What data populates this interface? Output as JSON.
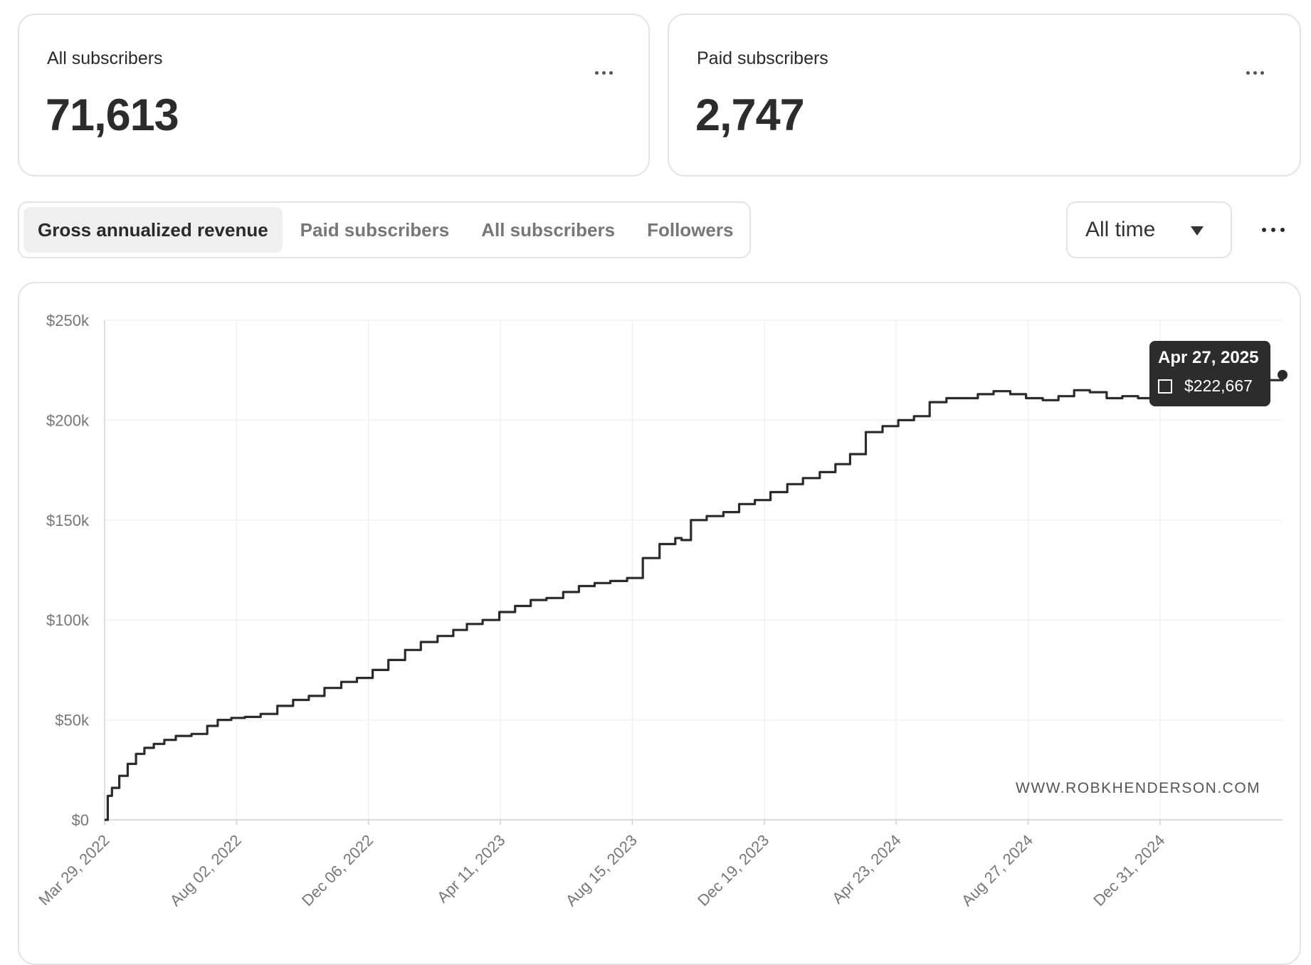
{
  "cards": [
    {
      "label": "All subscribers",
      "value": "71,613"
    },
    {
      "label": "Paid subscribers",
      "value": "2,747"
    }
  ],
  "tabs": [
    {
      "label": "Gross annualized revenue",
      "active": true
    },
    {
      "label": "Paid subscribers",
      "active": false
    },
    {
      "label": "All subscribers",
      "active": false
    },
    {
      "label": "Followers",
      "active": false
    }
  ],
  "range_select": {
    "value": "All time"
  },
  "icons": {
    "more": "more-horizontal-icon",
    "caret": "caret-down-icon"
  },
  "colors": {
    "line": "#2b2b2b",
    "tooltip_bg": "#2c2c2c",
    "active_tab_bg": "#efefef",
    "border": "#e4e4e4"
  },
  "watermark": "WWW.ROBKHENDERSON.COM",
  "tooltip": {
    "date": "Apr 27, 2025",
    "value": "$222,667"
  },
  "chart_data": {
    "type": "line",
    "ylim": [
      0,
      250000
    ],
    "y_ticks": [
      0,
      50000,
      100000,
      150000,
      200000,
      250000
    ],
    "y_tick_labels": [
      "$0",
      "$50k",
      "$100k",
      "$150k",
      "$200k",
      "$250k"
    ],
    "x_tick_labels": [
      "Mar 29, 2022",
      "Aug 02, 2022",
      "Dec 06, 2022",
      "Apr 11, 2023",
      "Aug 15, 2023",
      "Dec 19, 2023",
      "Apr 23, 2024",
      "Aug 27, 2024",
      "Dec 31, 2024"
    ],
    "x_range": [
      "2022-03-29",
      "2025-04-27"
    ],
    "grid": true,
    "series": [
      {
        "x": [
          "2022-03-29",
          "2022-04-01",
          "2022-04-05",
          "2022-04-12",
          "2022-04-20",
          "2022-04-28",
          "2022-05-06",
          "2022-05-15",
          "2022-05-25",
          "2022-06-05",
          "2022-06-20",
          "2022-07-05",
          "2022-07-15",
          "2022-07-28",
          "2022-08-10",
          "2022-08-25",
          "2022-09-10",
          "2022-09-25",
          "2022-10-10",
          "2022-10-25",
          "2022-11-10",
          "2022-11-25",
          "2022-12-10",
          "2022-12-25",
          "2023-01-10",
          "2023-01-25",
          "2023-02-10",
          "2023-02-25",
          "2023-03-10",
          "2023-03-25",
          "2023-04-10",
          "2023-04-25",
          "2023-05-10",
          "2023-05-25",
          "2023-06-10",
          "2023-06-25",
          "2023-07-10",
          "2023-07-25",
          "2023-08-10",
          "2023-08-25",
          "2023-09-10",
          "2023-09-25",
          "2023-10-01",
          "2023-10-10",
          "2023-10-25",
          "2023-11-10",
          "2023-11-25",
          "2023-12-10",
          "2023-12-25",
          "2024-01-10",
          "2024-01-25",
          "2024-02-10",
          "2024-02-25",
          "2024-03-10",
          "2024-03-25",
          "2024-04-10",
          "2024-04-25",
          "2024-05-10",
          "2024-05-25",
          "2024-06-10",
          "2024-06-25",
          "2024-07-10",
          "2024-07-25",
          "2024-08-10",
          "2024-08-25",
          "2024-09-10",
          "2024-09-25",
          "2024-10-10",
          "2024-10-25",
          "2024-11-10",
          "2024-11-25",
          "2024-12-10",
          "2024-12-25",
          "2025-01-10",
          "2025-01-25",
          "2025-02-10",
          "2025-02-25",
          "2025-03-10",
          "2025-03-25",
          "2025-04-10",
          "2025-04-27"
        ],
        "values": [
          0,
          12000,
          16000,
          22000,
          28000,
          33000,
          36000,
          38000,
          40000,
          42000,
          43000,
          47000,
          50000,
          51000,
          51500,
          53000,
          57000,
          60000,
          62000,
          66000,
          69000,
          71000,
          75000,
          80000,
          85000,
          89000,
          92000,
          95000,
          98000,
          100000,
          104000,
          107000,
          110000,
          111000,
          114000,
          117000,
          118500,
          119500,
          121000,
          131000,
          138000,
          141000,
          140000,
          150000,
          152000,
          154000,
          158000,
          160000,
          164000,
          168000,
          171000,
          174000,
          178000,
          183000,
          194000,
          197000,
          200000,
          202000,
          209000,
          211000,
          211000,
          213000,
          214500,
          213000,
          211000,
          210000,
          212000,
          215000,
          214000,
          211000,
          212000,
          211000,
          213000,
          214000,
          215000,
          216000,
          217000,
          218000,
          219000,
          220000,
          222667
        ]
      }
    ]
  }
}
